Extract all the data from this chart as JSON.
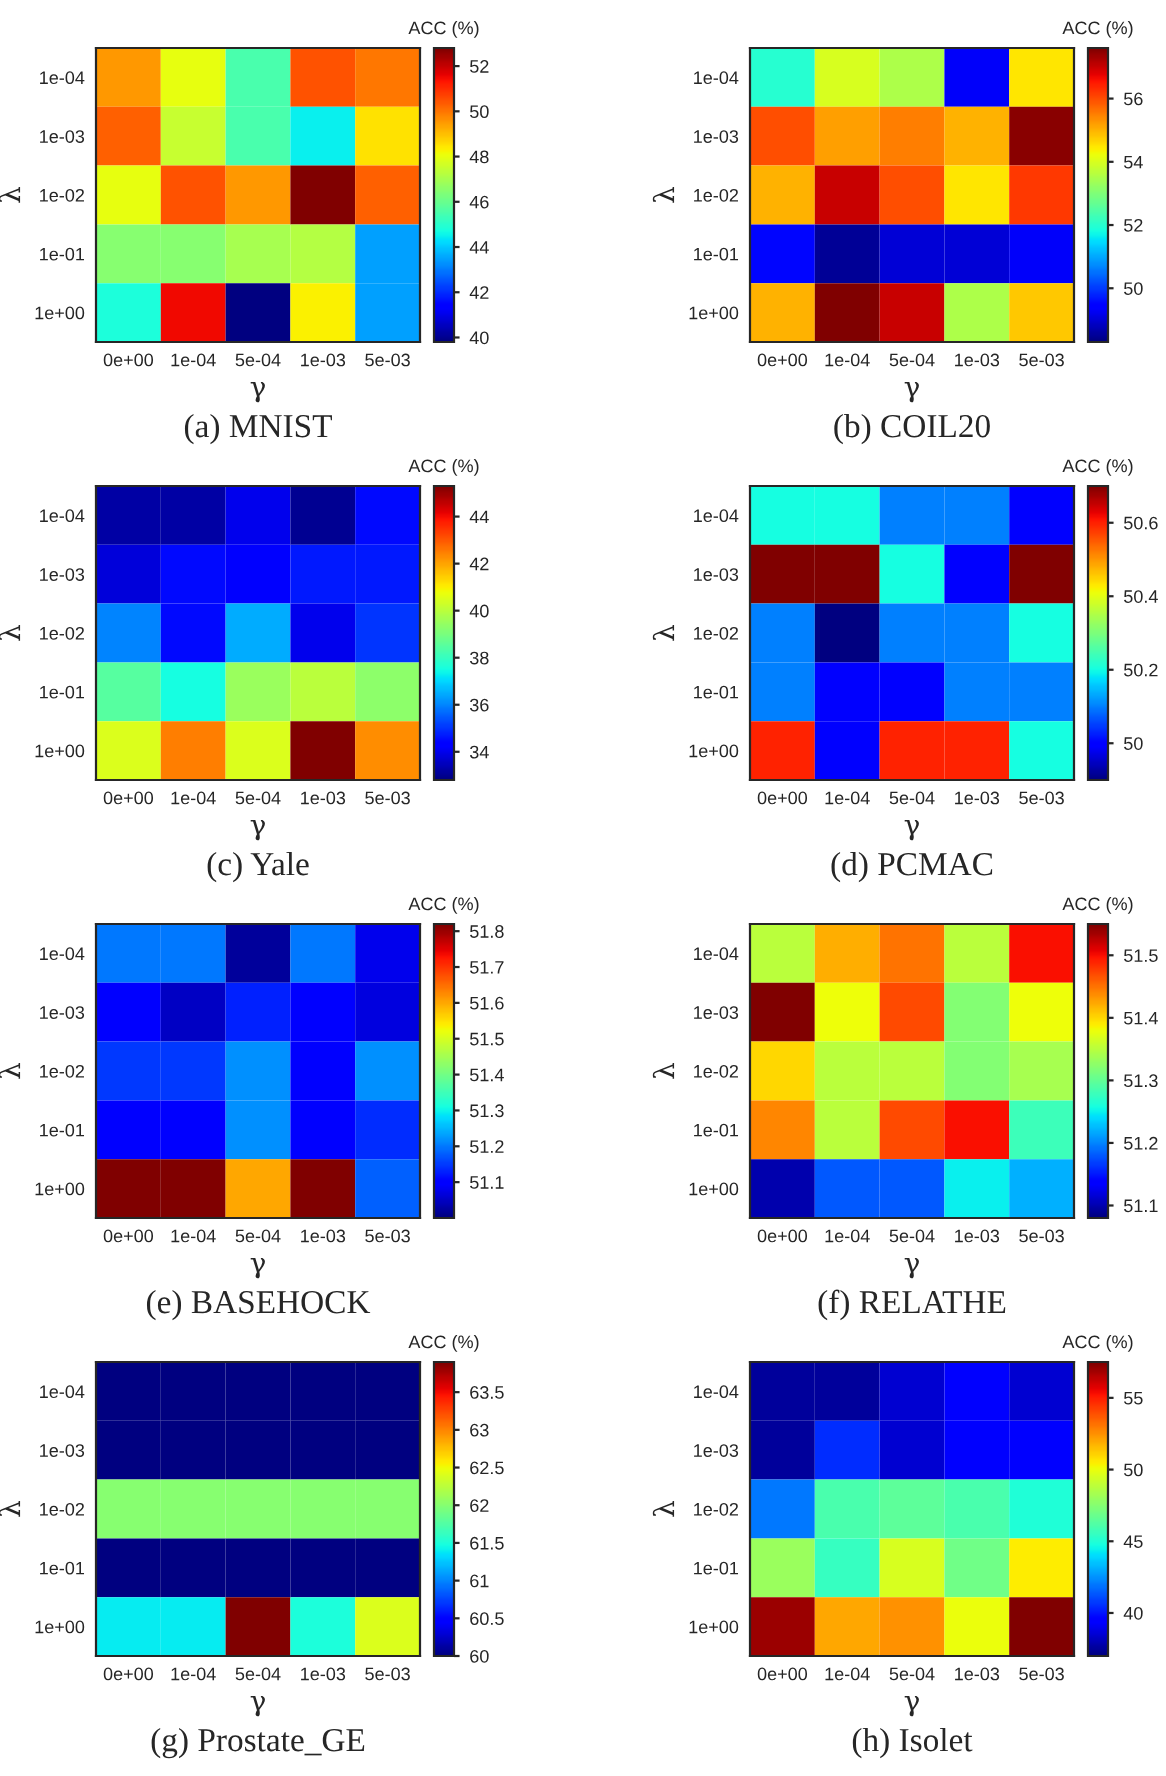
{
  "chart_data": [
    {
      "type": "heatmap",
      "title": "(a) MNIST",
      "xlabel": "γ",
      "ylabel": "λ",
      "clabel": "ACC (%)",
      "categories": [
        "0e+00",
        "1e-04",
        "5e-04",
        "1e-03",
        "5e-03"
      ],
      "y_categories": [
        "1e-04",
        "1e-03",
        "1e-02",
        "1e-01",
        "1e+00"
      ],
      "cells": [
        [
          49.5,
          48,
          45.5,
          50.5,
          50
        ],
        [
          50.3,
          47.5,
          45.5,
          44.5,
          48.5
        ],
        [
          48,
          50.5,
          49.5,
          52.8,
          50.3
        ],
        [
          46.5,
          46.5,
          47,
          47.2,
          43.5
        ],
        [
          44.8,
          51.5,
          39.8,
          48.3,
          43.5
        ]
      ],
      "clim": [
        39.8,
        52.8
      ],
      "cticks": [
        40,
        42,
        44,
        46,
        48,
        50,
        52
      ]
    },
    {
      "type": "heatmap",
      "title": "(b) COIL20",
      "xlabel": "γ",
      "ylabel": "λ",
      "clabel": "ACC (%)",
      "categories": [
        "0e+00",
        "1e-04",
        "5e-04",
        "1e-03",
        "5e-03"
      ],
      "y_categories": [
        "1e-04",
        "1e-03",
        "1e-02",
        "1e-01",
        "1e+00"
      ],
      "cells": [
        [
          52,
          54,
          53.5,
          49.3,
          54.5
        ],
        [
          56,
          55.2,
          55.5,
          55,
          57.5
        ],
        [
          55,
          57,
          56,
          54.5,
          56.2
        ],
        [
          49.5,
          48.5,
          49,
          49,
          49.3
        ],
        [
          55,
          57.6,
          57,
          53.5,
          54.8
        ]
      ],
      "clim": [
        48.3,
        57.6
      ],
      "cticks": [
        50,
        52,
        54,
        56
      ]
    },
    {
      "type": "heatmap",
      "title": "(c) Yale",
      "xlabel": "γ",
      "ylabel": "λ",
      "clabel": "ACC (%)",
      "categories": [
        "0e+00",
        "1e-04",
        "5e-04",
        "1e-03",
        "5e-03"
      ],
      "y_categories": [
        "1e-04",
        "1e-03",
        "1e-02",
        "1e-01",
        "1e+00"
      ],
      "cells": [
        [
          33.2,
          33.2,
          34,
          33,
          34.5
        ],
        [
          33.8,
          34.5,
          34.2,
          34.7,
          34.7
        ],
        [
          36,
          34.5,
          36.5,
          34,
          35
        ],
        [
          38.5,
          37.5,
          39.5,
          40,
          39.3
        ],
        [
          40.5,
          42.5,
          40.5,
          45.3,
          42.3
        ]
      ],
      "clim": [
        32.8,
        45.3
      ],
      "cticks": [
        34,
        36,
        38,
        40,
        42,
        44
      ]
    },
    {
      "type": "heatmap",
      "title": "(d) PCMAC",
      "xlabel": "γ",
      "ylabel": "λ",
      "clabel": "ACC (%)",
      "categories": [
        "0e+00",
        "1e-04",
        "5e-04",
        "1e-03",
        "5e-03"
      ],
      "y_categories": [
        "1e-04",
        "1e-03",
        "1e-02",
        "1e-01",
        "1e+00"
      ],
      "cells": [
        [
          50.2,
          50.2,
          50.1,
          50.1,
          50.0
        ],
        [
          50.7,
          50.7,
          50.2,
          50.0,
          50.7
        ],
        [
          50.1,
          49.9,
          50.1,
          50.1,
          50.2
        ],
        [
          50.1,
          50.0,
          50.0,
          50.1,
          50.1
        ],
        [
          50.6,
          50.0,
          50.6,
          50.6,
          50.2
        ]
      ],
      "clim": [
        49.9,
        50.7
      ],
      "cticks": [
        50,
        50.2,
        50.4,
        50.6
      ]
    },
    {
      "type": "heatmap",
      "title": "(e) BASEHOCK",
      "xlabel": "γ",
      "ylabel": "λ",
      "clabel": "ACC (%)",
      "categories": [
        "0e+00",
        "1e-04",
        "5e-04",
        "1e-03",
        "5e-03"
      ],
      "y_categories": [
        "1e-04",
        "1e-03",
        "1e-02",
        "1e-01",
        "1e+00"
      ],
      "cells": [
        [
          51.2,
          51.2,
          51.02,
          51.2,
          51.08
        ],
        [
          51.1,
          51.05,
          51.13,
          51.1,
          51.07
        ],
        [
          51.15,
          51.15,
          51.22,
          51.1,
          51.22
        ],
        [
          51.1,
          51.1,
          51.22,
          51.1,
          51.14
        ],
        [
          51.82,
          51.82,
          51.6,
          51.82,
          51.18
        ]
      ],
      "clim": [
        51.0,
        51.82
      ],
      "cticks": [
        51.1,
        51.2,
        51.3,
        51.4,
        51.5,
        51.6,
        51.7,
        51.8
      ]
    },
    {
      "type": "heatmap",
      "title": "(f) RELATHE",
      "xlabel": "γ",
      "ylabel": "λ",
      "clabel": "ACC (%)",
      "categories": [
        "0e+00",
        "1e-04",
        "5e-04",
        "1e-03",
        "5e-03"
      ],
      "y_categories": [
        "1e-04",
        "1e-03",
        "1e-02",
        "1e-01",
        "1e+00"
      ],
      "cells": [
        [
          51.35,
          51.42,
          51.45,
          51.35,
          51.5
        ],
        [
          51.55,
          51.38,
          51.47,
          51.32,
          51.38
        ],
        [
          51.4,
          51.35,
          51.35,
          51.32,
          51.34
        ],
        [
          51.44,
          51.35,
          51.47,
          51.5,
          51.28
        ],
        [
          51.1,
          51.18,
          51.18,
          51.25,
          51.22
        ]
      ],
      "clim": [
        51.08,
        51.55
      ],
      "cticks": [
        51.1,
        51.2,
        51.3,
        51.4,
        51.5
      ]
    },
    {
      "type": "heatmap",
      "title": "(g) Prostate_GE",
      "xlabel": "γ",
      "ylabel": "λ",
      "clabel": "ACC (%)",
      "categories": [
        "0e+00",
        "1e-04",
        "5e-04",
        "1e-03",
        "5e-03"
      ],
      "y_categories": [
        "1e-04",
        "1e-03",
        "1e-02",
        "1e-01",
        "1e+00"
      ],
      "cells": [
        [
          60,
          60,
          60,
          60,
          60
        ],
        [
          60,
          60,
          60,
          60,
          60
        ],
        [
          62,
          62,
          62,
          62,
          62
        ],
        [
          60,
          60,
          60,
          60,
          60
        ],
        [
          61.4,
          61.4,
          63.9,
          61.5,
          62.4
        ]
      ],
      "clim": [
        60,
        63.9
      ],
      "cticks": [
        60,
        60.5,
        61,
        61.5,
        62,
        62.5,
        63,
        63.5
      ]
    },
    {
      "type": "heatmap",
      "title": "(h) Isolet",
      "xlabel": "γ",
      "ylabel": "λ",
      "clabel": "ACC (%)",
      "categories": [
        "0e+00",
        "1e-04",
        "5e-04",
        "1e-03",
        "5e-03"
      ],
      "y_categories": [
        "1e-04",
        "1e-03",
        "1e-02",
        "1e-01",
        "1e+00"
      ],
      "cells": [
        [
          37.5,
          37.5,
          38.5,
          39.5,
          38.5
        ],
        [
          37.5,
          40.5,
          38.5,
          39.5,
          39.5
        ],
        [
          42,
          46,
          46.5,
          46,
          45
        ],
        [
          48,
          45.5,
          49.5,
          47,
          50.5
        ],
        [
          57,
          52,
          52.5,
          50,
          57.5
        ]
      ],
      "clim": [
        37,
        57.5
      ],
      "cticks": [
        40,
        45,
        50,
        55
      ]
    }
  ]
}
